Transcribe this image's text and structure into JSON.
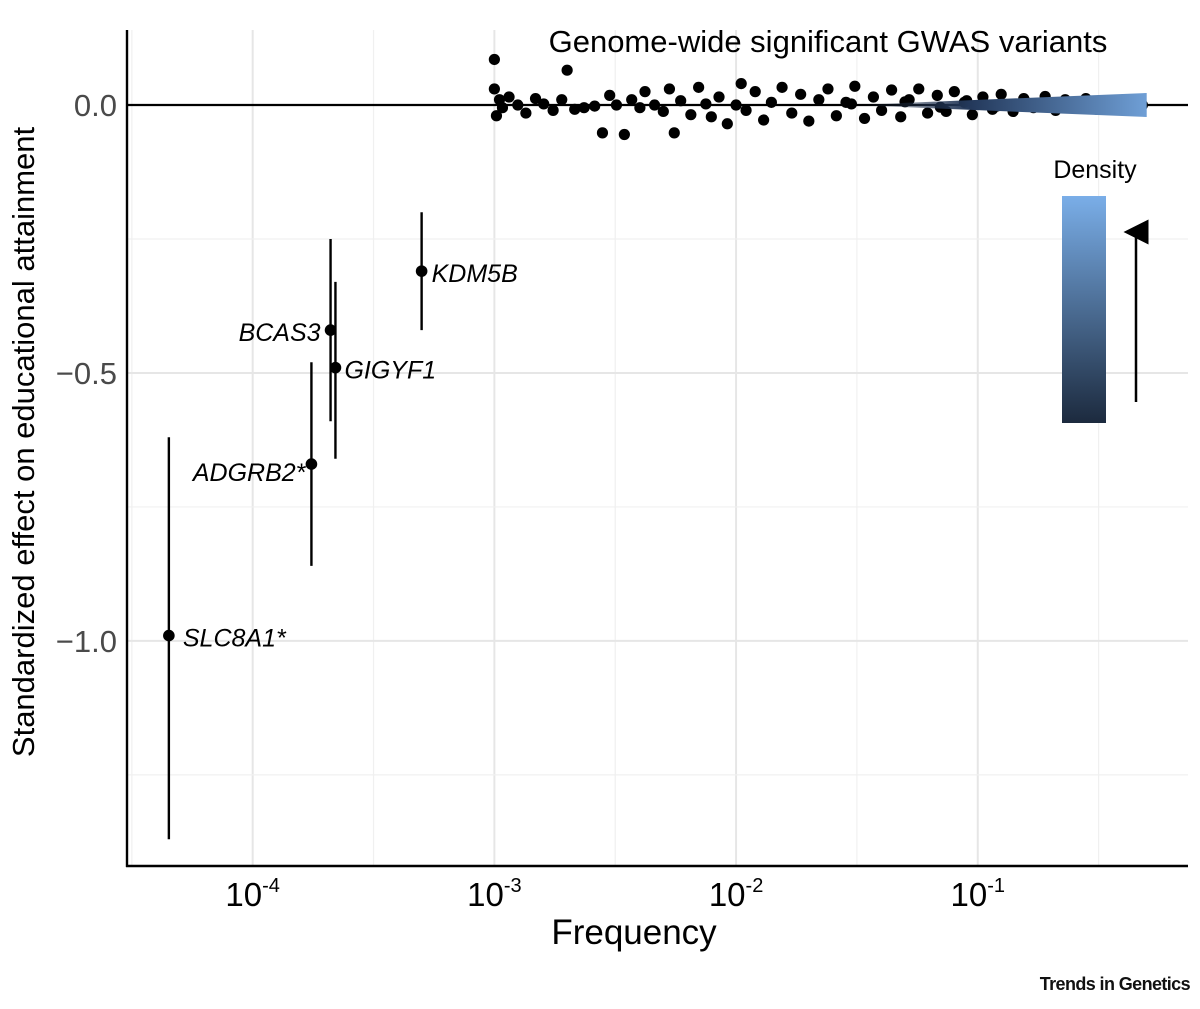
{
  "chart_data": {
    "type": "scatter",
    "title": "Genome-wide significant GWAS variants",
    "xlabel": "Frequency",
    "ylabel": "Standardized effect on educational attainment",
    "x_scale": "log10",
    "xlim": [
      3.02e-05,
      0.741
    ],
    "ylim": [
      -1.42,
      0.14
    ],
    "x_ticks": [
      {
        "value": 0.0001,
        "base": "10",
        "exp": "-4"
      },
      {
        "value": 0.001,
        "base": "10",
        "exp": "-3"
      },
      {
        "value": 0.01,
        "base": "10",
        "exp": "-2"
      },
      {
        "value": 0.1,
        "base": "10",
        "exp": "-1"
      }
    ],
    "y_ticks": [
      {
        "value": 0.0,
        "label": "0.0"
      },
      {
        "value": -0.5,
        "label": "−0.5"
      },
      {
        "value": -1.0,
        "label": "−1.0"
      }
    ],
    "reference_line_y": 0,
    "grid": true,
    "rare_variants": [
      {
        "gene": "KDM5B",
        "frequency": 0.0005,
        "effect": -0.31,
        "ci": [
          -0.42,
          -0.2
        ]
      },
      {
        "gene": "BCAS3",
        "frequency": 0.00021,
        "effect": -0.42,
        "ci": [
          -0.59,
          -0.25
        ]
      },
      {
        "gene": "GIGYF1",
        "frequency": 0.00022,
        "effect": -0.49,
        "ci": [
          -0.66,
          -0.33
        ]
      },
      {
        "gene": "ADGRB2*",
        "frequency": 0.000175,
        "effect": -0.67,
        "ci": [
          -0.86,
          -0.48
        ]
      },
      {
        "gene": "SLC8A1*",
        "frequency": 4.5e-05,
        "effect": -0.99,
        "ci": [
          -1.37,
          -0.62
        ]
      }
    ],
    "common_variants_summary": {
      "frequency_range": [
        0.001,
        0.5
      ],
      "effect_range": [
        -0.055,
        0.085
      ],
      "points": [
        [
          0.001,
          0.085
        ],
        [
          0.001,
          0.03
        ],
        [
          0.00102,
          -0.02
        ],
        [
          0.00105,
          0.01
        ],
        [
          0.00108,
          -0.005
        ],
        [
          0.00115,
          0.015
        ],
        [
          0.00125,
          0.0
        ],
        [
          0.00135,
          -0.015
        ],
        [
          0.00148,
          0.012
        ],
        [
          0.0016,
          0.002
        ],
        [
          0.00175,
          -0.01
        ],
        [
          0.0019,
          0.01
        ],
        [
          0.002,
          0.065
        ],
        [
          0.00215,
          -0.008
        ],
        [
          0.00235,
          -0.005
        ],
        [
          0.0026,
          -0.002
        ],
        [
          0.0028,
          -0.052
        ],
        [
          0.003,
          0.018
        ],
        [
          0.0032,
          0.0
        ],
        [
          0.00345,
          -0.055
        ],
        [
          0.0037,
          0.01
        ],
        [
          0.004,
          -0.005
        ],
        [
          0.0042,
          0.025
        ],
        [
          0.0046,
          0.0
        ],
        [
          0.005,
          -0.012
        ],
        [
          0.0053,
          0.03
        ],
        [
          0.00555,
          -0.052
        ],
        [
          0.0059,
          0.008
        ],
        [
          0.0065,
          -0.018
        ],
        [
          0.007,
          0.033
        ],
        [
          0.0075,
          0.002
        ],
        [
          0.0079,
          -0.022
        ],
        [
          0.0085,
          0.015
        ],
        [
          0.0092,
          -0.035
        ],
        [
          0.01,
          0.0
        ],
        [
          0.0105,
          0.04
        ],
        [
          0.011,
          -0.01
        ],
        [
          0.012,
          0.025
        ],
        [
          0.013,
          -0.028
        ],
        [
          0.014,
          0.005
        ],
        [
          0.0155,
          0.033
        ],
        [
          0.017,
          -0.015
        ],
        [
          0.0185,
          0.02
        ],
        [
          0.02,
          -0.03
        ],
        [
          0.022,
          0.01
        ],
        [
          0.024,
          0.03
        ],
        [
          0.026,
          -0.02
        ],
        [
          0.0285,
          0.005
        ],
        [
          0.031,
          0.035
        ],
        [
          0.034,
          -0.025
        ],
        [
          0.037,
          0.015
        ],
        [
          0.04,
          -0.01
        ],
        [
          0.044,
          0.028
        ],
        [
          0.048,
          -0.022
        ],
        [
          0.052,
          0.01
        ],
        [
          0.057,
          0.03
        ],
        [
          0.062,
          -0.015
        ],
        [
          0.068,
          0.018
        ],
        [
          0.074,
          -0.012
        ],
        [
          0.08,
          0.025
        ],
        [
          0.088,
          0.005
        ],
        [
          0.095,
          -0.018
        ],
        [
          0.105,
          0.015
        ],
        [
          0.115,
          -0.008
        ],
        [
          0.125,
          0.02
        ],
        [
          0.14,
          -0.012
        ],
        [
          0.155,
          0.012
        ],
        [
          0.17,
          -0.005
        ],
        [
          0.19,
          0.016
        ],
        [
          0.21,
          -0.01
        ],
        [
          0.23,
          0.01
        ],
        [
          0.255,
          -0.006
        ],
        [
          0.28,
          0.012
        ],
        [
          0.31,
          -0.008
        ],
        [
          0.34,
          0.008
        ],
        [
          0.37,
          -0.005
        ],
        [
          0.4,
          0.01
        ],
        [
          0.43,
          -0.004
        ],
        [
          0.46,
          0.006
        ],
        [
          0.48,
          0.0
        ],
        [
          0.03,
          0.002
        ],
        [
          0.05,
          0.006
        ],
        [
          0.07,
          -0.004
        ],
        [
          0.09,
          0.008
        ],
        [
          0.12,
          -0.002
        ],
        [
          0.16,
          0.004
        ],
        [
          0.2,
          0.0
        ],
        [
          0.27,
          0.002
        ],
        [
          0.35,
          -0.002
        ],
        [
          0.44,
          0.002
        ]
      ]
    },
    "legend": {
      "title": "Density",
      "position": "right",
      "gradient": [
        "#1c2a3e",
        "#7aaee8"
      ]
    }
  },
  "credit": "Trends in Genetics"
}
